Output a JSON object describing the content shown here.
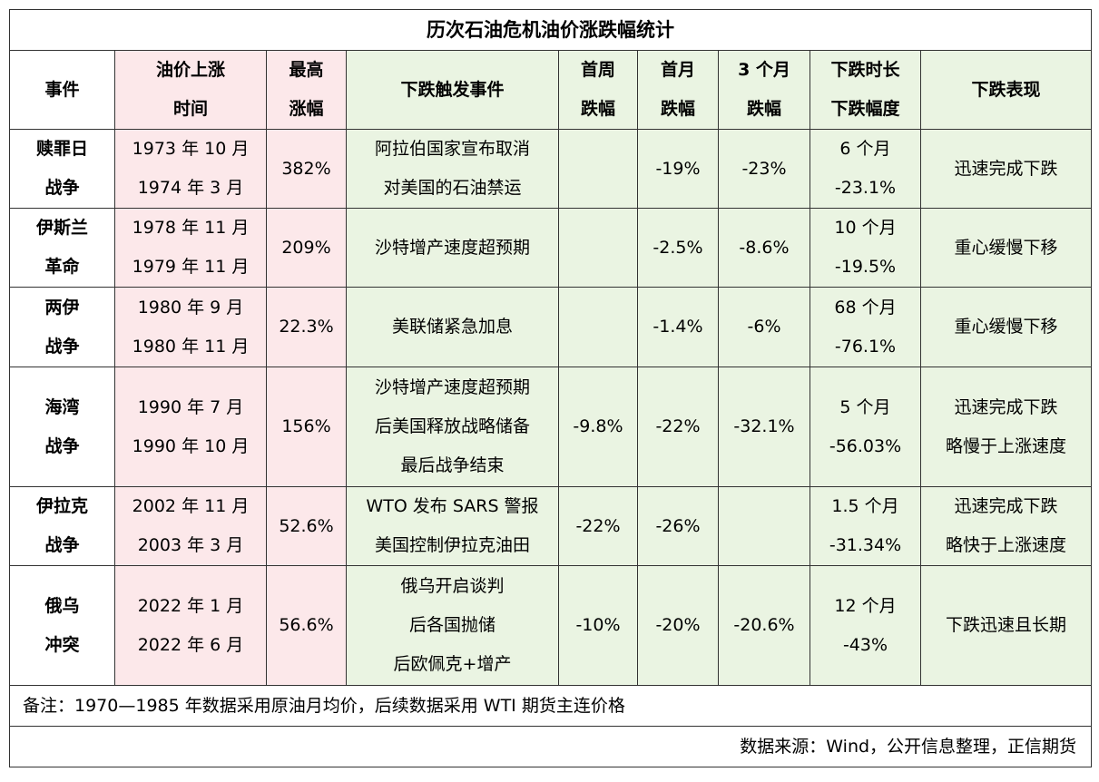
{
  "title": "历次石油危机油价涨跌幅统计",
  "headers": [
    [
      "事件"
    ],
    [
      "油价上涨",
      "时间"
    ],
    [
      "最高",
      "涨幅"
    ],
    [
      "下跌触发事件"
    ],
    [
      "首周",
      "跌幅"
    ],
    [
      "首月",
      "跌幅"
    ],
    [
      "3 个月",
      "跌幅"
    ],
    [
      "下跌时长",
      "下跌幅度"
    ],
    [
      "下跌表现"
    ]
  ],
  "rows": [
    {
      "event": [
        "赎罪日",
        "战争"
      ],
      "time": [
        "1973 年 10 月",
        "1974 年 3 月"
      ],
      "max": "382%",
      "trigger": [
        "阿拉伯国家宣布取消",
        "对美国的石油禁运"
      ],
      "week": "",
      "month": "-19%",
      "m3": "-23%",
      "duration": [
        "6 个月",
        "-23.1%"
      ],
      "perf": [
        "迅速完成下跌"
      ]
    },
    {
      "event": [
        "伊斯兰",
        "革命"
      ],
      "time": [
        "1978 年 11 月",
        "1979 年 11 月"
      ],
      "max": "209%",
      "trigger": [
        "沙特增产速度超预期"
      ],
      "week": "",
      "month": "-2.5%",
      "m3": "-8.6%",
      "duration": [
        "10 个月",
        "-19.5%"
      ],
      "perf": [
        "重心缓慢下移"
      ]
    },
    {
      "event": [
        "两伊",
        "战争"
      ],
      "time": [
        "1980 年 9 月",
        "1980 年 11 月"
      ],
      "max": "22.3%",
      "trigger": [
        "美联储紧急加息"
      ],
      "week": "",
      "month": "-1.4%",
      "m3": "-6%",
      "duration": [
        "68 个月",
        "-76.1%"
      ],
      "perf": [
        "重心缓慢下移"
      ]
    },
    {
      "event": [
        "海湾",
        "战争"
      ],
      "time": [
        "1990 年 7 月",
        "1990 年 10 月"
      ],
      "max": "156%",
      "trigger": [
        "沙特增产速度超预期",
        "后美国释放战略储备",
        "最后战争结束"
      ],
      "week": "-9.8%",
      "month": "-22%",
      "m3": "-32.1%",
      "duration": [
        "5 个月",
        "-56.03%"
      ],
      "perf": [
        "迅速完成下跌",
        "略慢于上涨速度"
      ]
    },
    {
      "event": [
        "伊拉克",
        "战争"
      ],
      "time": [
        "2002 年 11 月",
        "2003 年 3 月"
      ],
      "max": "52.6%",
      "trigger": [
        "WTO 发布 SARS 警报",
        "美国控制伊拉克油田"
      ],
      "week": "-22%",
      "month": "-26%",
      "m3": "",
      "duration": [
        "1.5 个月",
        "-31.34%"
      ],
      "perf": [
        "迅速完成下跌",
        "略快于上涨速度"
      ]
    },
    {
      "event": [
        "俄乌",
        "冲突"
      ],
      "time": [
        "2022 年 1 月",
        "2022 年 6 月"
      ],
      "max": "56.6%",
      "trigger": [
        "俄乌开启谈判",
        "后各国抛储",
        "后欧佩克+增产"
      ],
      "week": "-10%",
      "month": "-20%",
      "m3": "-20.6%",
      "duration": [
        "12 个月",
        "-43%"
      ],
      "perf": [
        "下跌迅速且长期"
      ]
    }
  ],
  "note": "备注：1970—1985 年数据采用原油月均价，后续数据采用 WTI 期货主连价格",
  "source": "数据来源：Wind，公开信息整理，正信期货",
  "colors": {
    "pink": "#fce8ea",
    "green": "#eaf4e2"
  }
}
